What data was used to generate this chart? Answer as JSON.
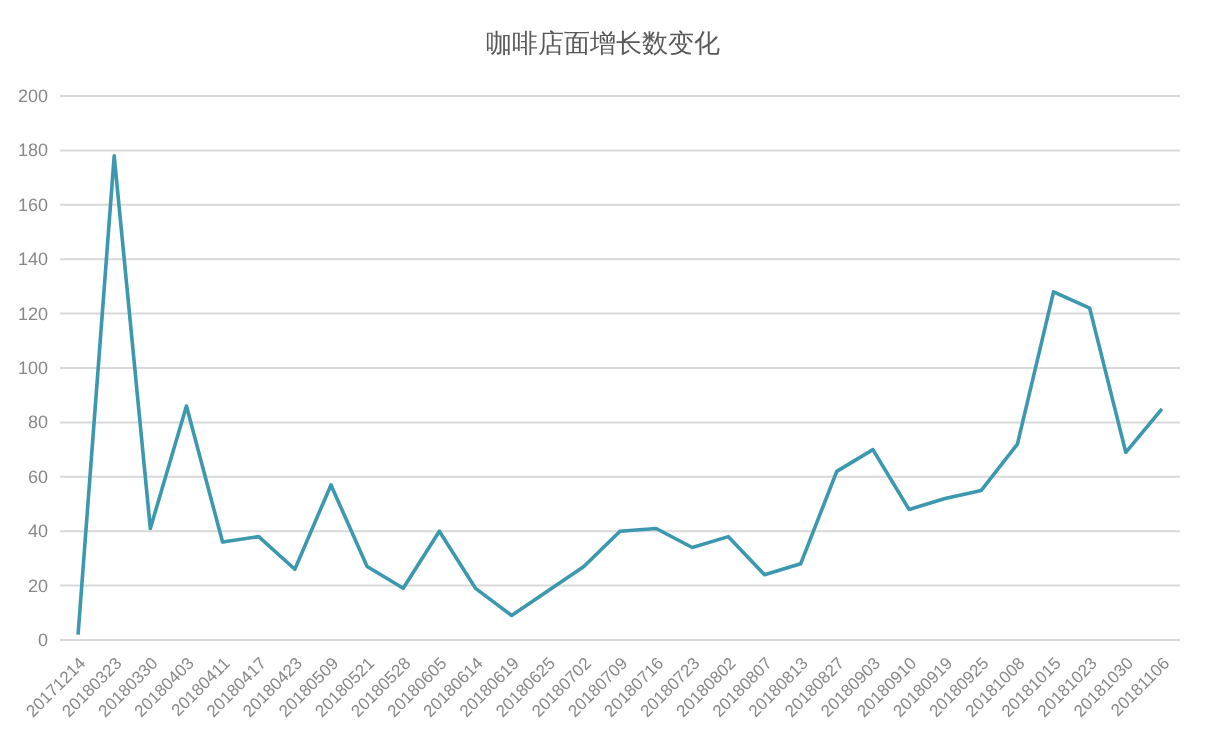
{
  "chart_data": {
    "type": "line",
    "title": "咖啡店面增长数变化",
    "categories": [
      "20171214",
      "20180323",
      "20180330",
      "20180403",
      "20180411",
      "20180417",
      "20180423",
      "20180509",
      "20180521",
      "20180528",
      "20180605",
      "20180614",
      "20180619",
      "20180625",
      "20180702",
      "20180709",
      "20180716",
      "20180723",
      "20180802",
      "20180807",
      "20180813",
      "20180827",
      "20180903",
      "20180910",
      "20180919",
      "20180925",
      "20181008",
      "20181015",
      "20181023",
      "20181030",
      "20181106"
    ],
    "series": [
      {
        "color": "#3b98ae",
        "values": [
          2,
          178,
          41,
          86,
          36,
          38,
          26,
          57,
          27,
          19,
          40,
          19,
          9,
          18,
          27,
          40,
          41,
          34,
          38,
          24,
          28,
          62,
          70,
          48,
          52,
          55,
          72,
          128,
          122,
          69,
          85
        ]
      }
    ],
    "ylim": [
      0,
      200
    ],
    "yticks": [
      0,
      20,
      40,
      60,
      80,
      100,
      120,
      140,
      160,
      180,
      200
    ],
    "grid": "y",
    "marker": "none",
    "line_style": "solid"
  }
}
